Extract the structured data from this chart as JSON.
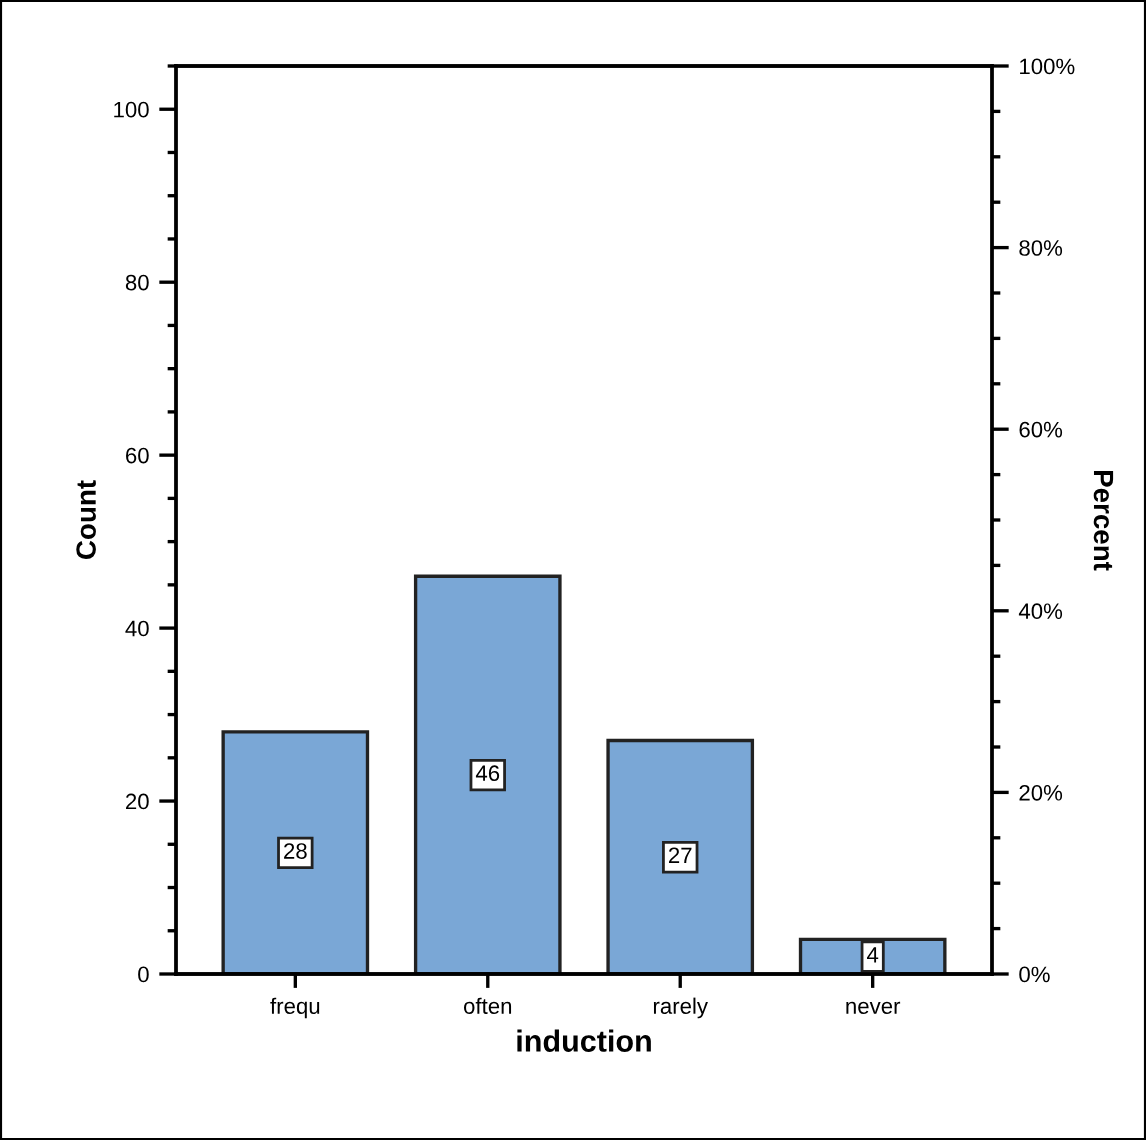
{
  "chart_data": {
    "type": "bar",
    "categories": [
      "frequ",
      "often",
      "rarely",
      "never"
    ],
    "values": [
      28,
      46,
      27,
      4
    ],
    "color": "#7aa7d6",
    "xlabel": "induction",
    "ylabel": "Count",
    "y2label": "Percent",
    "ylim": [
      0,
      105
    ],
    "yticks": [
      0,
      20,
      40,
      60,
      80,
      100
    ],
    "y2lim": [
      0,
      100
    ],
    "y2ticks": [
      {
        "value": 0,
        "label": "0%"
      },
      {
        "value": 20,
        "label": "20%"
      },
      {
        "value": 40,
        "label": "40%"
      },
      {
        "value": 60,
        "label": "60%"
      },
      {
        "value": 80,
        "label": "80%"
      },
      {
        "value": 100,
        "label": "100%"
      }
    ],
    "data_labels": true
  }
}
